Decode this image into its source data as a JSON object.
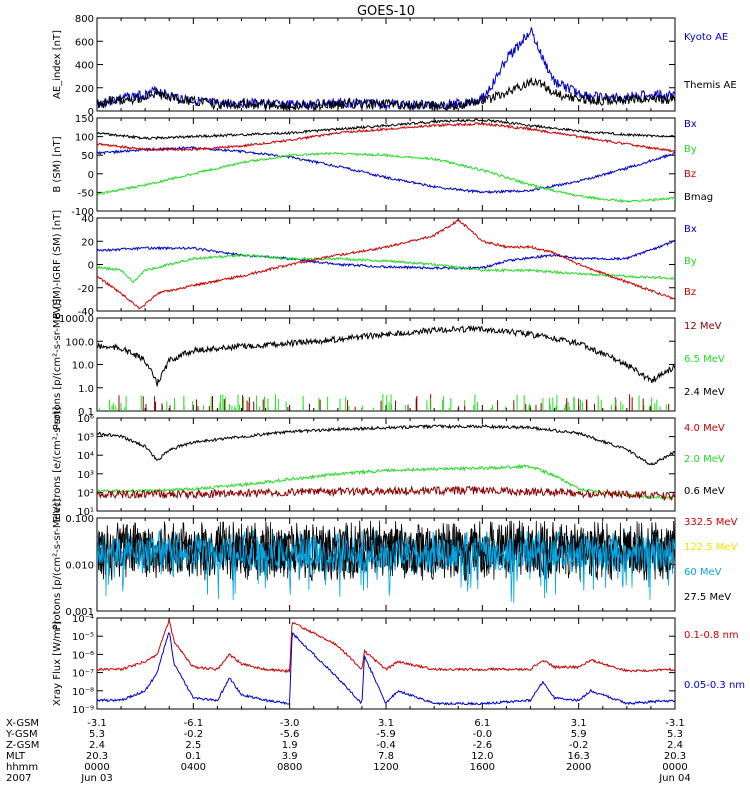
{
  "title": "GOES-10",
  "colors": {
    "blue": "#0000c8",
    "black": "#000000",
    "green": "#22dd22",
    "red": "#cc0000",
    "darkred": "#8b0000",
    "yellow": "#f2e400",
    "cyan": "#00a8e8"
  },
  "xaxis": {
    "tick_labels": [
      "0000",
      "0400",
      "0800",
      "1200",
      "1600",
      "2000",
      "0000"
    ],
    "row_labels": [
      "X-GSM",
      "Y-GSM",
      "Z-GSM",
      "MLT",
      "hhmm",
      "2007"
    ],
    "rows": {
      "xgsm": [
        "-3.1",
        "-6.1",
        "-3.0",
        "3.1",
        "6.1",
        "3.1",
        "-3.1"
      ],
      "ygsm": [
        "5.3",
        "-0.2",
        "-5.6",
        "-5.9",
        "-0.0",
        "5.9",
        "5.3"
      ],
      "zgsm": [
        "2.4",
        "2.5",
        "1.9",
        "-0.4",
        "-2.6",
        "-0.2",
        "2.4"
      ],
      "mlt": [
        "20.3",
        "0.1",
        "3.9",
        "7.8",
        "12.0",
        "16.3",
        "20.3"
      ],
      "hhmm": [
        "0000",
        "0400",
        "0800",
        "1200",
        "1600",
        "2000",
        "0000"
      ]
    },
    "date_start": "Jun 03",
    "date_end": "Jun 04"
  },
  "chart_data": [
    {
      "type": "line",
      "ylabel": "AE_index [nT]",
      "ylim": [
        0,
        800
      ],
      "yticks": [
        "0",
        "200",
        "400",
        "600",
        "800"
      ],
      "series": [
        {
          "name": "Kyoto AE",
          "color": "blue",
          "x": [
            0,
            1,
            2,
            2.5,
            3,
            4,
            5,
            6,
            7,
            8,
            9,
            10,
            11,
            12,
            13,
            14,
            15,
            16,
            16.5,
            17,
            17.5,
            18,
            18.5,
            19,
            20,
            21,
            22,
            23,
            24
          ],
          "y": [
            60,
            110,
            140,
            180,
            130,
            90,
            60,
            70,
            60,
            50,
            60,
            70,
            70,
            60,
            50,
            50,
            60,
            110,
            250,
            450,
            560,
            700,
            450,
            250,
            150,
            110,
            120,
            140,
            130
          ]
        },
        {
          "name": "Themis AE",
          "color": "black",
          "x": [
            0,
            1,
            2,
            2.5,
            3,
            4,
            5,
            6,
            7,
            8,
            9,
            10,
            11,
            12,
            13,
            14,
            15,
            16,
            17,
            18,
            18.5,
            19,
            20,
            21,
            22,
            23,
            24
          ],
          "y": [
            60,
            90,
            120,
            150,
            110,
            80,
            55,
            60,
            55,
            45,
            50,
            60,
            60,
            55,
            50,
            45,
            55,
            90,
            150,
            260,
            240,
            150,
            110,
            90,
            100,
            110,
            100
          ]
        }
      ]
    },
    {
      "type": "line",
      "ylabel": "B (SM) [nT]",
      "ylim": [
        -100,
        150
      ],
      "yticks": [
        "-100",
        "-50",
        "0",
        "50",
        "100",
        "150"
      ],
      "series": [
        {
          "name": "Bx",
          "color": "blue",
          "x": [
            0,
            2,
            4,
            6,
            8,
            10,
            12,
            14,
            16,
            18,
            20,
            22,
            24
          ],
          "y": [
            55,
            65,
            70,
            60,
            45,
            20,
            -10,
            -35,
            -50,
            -45,
            -20,
            15,
            55
          ]
        },
        {
          "name": "By",
          "color": "green",
          "x": [
            0,
            2,
            4,
            6,
            8,
            10,
            12,
            14,
            16,
            18,
            20,
            22,
            24
          ],
          "y": [
            -55,
            -30,
            0,
            30,
            50,
            55,
            50,
            40,
            10,
            -30,
            -60,
            -75,
            -65
          ]
        },
        {
          "name": "Bz",
          "color": "red",
          "x": [
            0,
            2,
            4,
            6,
            8,
            10,
            12,
            14,
            16,
            18,
            20,
            22,
            24
          ],
          "y": [
            80,
            65,
            65,
            75,
            90,
            110,
            120,
            130,
            135,
            120,
            100,
            80,
            60
          ]
        },
        {
          "name": "Bmag",
          "color": "black",
          "x": [
            0,
            2,
            4,
            6,
            8,
            10,
            12,
            14,
            16,
            18,
            20,
            22,
            24
          ],
          "y": [
            110,
            95,
            100,
            105,
            110,
            120,
            130,
            140,
            145,
            130,
            115,
            105,
            100
          ]
        }
      ]
    },
    {
      "type": "line",
      "ylabel": "B (SM)-IGRF (SM) [nT]",
      "ylim": [
        -40,
        40
      ],
      "yticks": [
        "-40",
        "-20",
        "0",
        "20",
        "40"
      ],
      "series": [
        {
          "name": "Bx",
          "color": "blue",
          "x": [
            0,
            2,
            4,
            6,
            8,
            10,
            12,
            14,
            16,
            17,
            18,
            19,
            20,
            22,
            24
          ],
          "y": [
            12,
            14,
            14,
            8,
            5,
            0,
            -2,
            -3,
            -3,
            3,
            6,
            8,
            5,
            5,
            20
          ]
        },
        {
          "name": "By",
          "color": "green",
          "x": [
            0,
            1,
            1.5,
            2,
            3,
            4,
            6,
            8,
            10,
            12,
            14,
            16,
            18,
            20,
            22,
            24
          ],
          "y": [
            -2,
            -5,
            -15,
            -5,
            0,
            5,
            8,
            5,
            5,
            3,
            0,
            -5,
            -5,
            -8,
            -10,
            -12
          ]
        },
        {
          "name": "Bz",
          "color": "red",
          "x": [
            0,
            1,
            1.8,
            2.5,
            4,
            6,
            8,
            10,
            12,
            14,
            15,
            15.5,
            16,
            17,
            18,
            19,
            20,
            22,
            24
          ],
          "y": [
            -10,
            -25,
            -38,
            -25,
            -18,
            -10,
            0,
            8,
            15,
            25,
            38,
            30,
            20,
            15,
            15,
            10,
            0,
            -15,
            -30
          ]
        }
      ]
    },
    {
      "type": "line",
      "scale": "log",
      "ylabel": "Protons [p/(cm²-s-sr-MeV)]",
      "ylim": [
        0.1,
        1000
      ],
      "yticks": [
        "0.1",
        "1.0",
        "10.0",
        "100.0",
        "1000.0"
      ],
      "series": [
        {
          "name": "12 MeV",
          "color": "darkred",
          "x": [],
          "y": []
        },
        {
          "name": "6.5 MeV",
          "color": "green",
          "x": [],
          "y": []
        },
        {
          "name": "2.4 MeV",
          "color": "black",
          "x": [
            0,
            1,
            2,
            2.5,
            3,
            4,
            6,
            8,
            10,
            12,
            14,
            16,
            18,
            20,
            22,
            23,
            24
          ],
          "y": [
            60,
            50,
            15,
            1.5,
            15,
            40,
            60,
            80,
            120,
            200,
            300,
            350,
            200,
            80,
            10,
            2,
            8
          ]
        }
      ]
    },
    {
      "type": "line",
      "scale": "log",
      "ylabel": "Electrons [e/(cm²-s-sr)]",
      "ylim": [
        10,
        1000000
      ],
      "yticks": [
        "10¹",
        "10²",
        "10³",
        "10⁴",
        "10⁵",
        "10⁶"
      ],
      "series": [
        {
          "name": "4.0 MeV",
          "color": "red",
          "x": [],
          "y": []
        },
        {
          "name": "2.0 MeV",
          "color": "green",
          "x": [
            0,
            2,
            4,
            6,
            8,
            10,
            12,
            14,
            16,
            18,
            19,
            20,
            22,
            24
          ],
          "y": [
            120,
            120,
            150,
            250,
            500,
            1000,
            1500,
            1800,
            2000,
            2500,
            800,
            150,
            70,
            50
          ]
        },
        {
          "name": "0.6 MeV",
          "color": "black",
          "x": [
            0,
            1,
            2,
            2.5,
            3,
            4,
            6,
            8,
            10,
            12,
            14,
            16,
            18,
            20,
            22,
            23,
            24
          ],
          "y": [
            150000,
            100000,
            30000,
            5000,
            20000,
            50000,
            100000,
            180000,
            250000,
            300000,
            350000,
            350000,
            300000,
            150000,
            20000,
            3000,
            15000
          ]
        },
        {
          "name": "darkred-base",
          "color": "darkred",
          "x": [
            0,
            4,
            8,
            12,
            16,
            20,
            24
          ],
          "y": [
            80,
            80,
            100,
            120,
            130,
            90,
            60
          ]
        }
      ]
    },
    {
      "type": "line",
      "scale": "log",
      "ylabel": "Protons [p/(cm²-s-sr-MeV)]",
      "ylim": [
        0.001,
        0.1
      ],
      "yticks": [
        "0.001",
        "0.010",
        "0.100"
      ],
      "series": [
        {
          "name": "332.5 MeV",
          "color": "red",
          "x": [],
          "y": []
        },
        {
          "name": "122.5 MeV",
          "color": "yellow",
          "x": [],
          "y": []
        },
        {
          "name": "60 MeV",
          "color": "cyan",
          "x": [
            0,
            24
          ],
          "y": [
            0.018,
            0.018
          ]
        },
        {
          "name": "27.5 MeV",
          "color": "black",
          "x": [
            0,
            24
          ],
          "y": [
            0.02,
            0.02
          ]
        }
      ]
    },
    {
      "type": "line",
      "scale": "log",
      "ylabel": "Xray Flux [W/m²]",
      "ylim": [
        1e-09,
        0.0001
      ],
      "yticks": [
        "10⁻⁹",
        "10⁻⁸",
        "10⁻⁷",
        "10⁻⁶",
        "10⁻⁵",
        "10⁻⁴"
      ],
      "series": [
        {
          "name": "0.1-0.8 nm",
          "color": "red",
          "x": [
            0,
            1,
            2,
            2.5,
            3,
            3.2,
            4,
            5,
            5.5,
            6,
            7,
            8,
            8.1,
            10,
            11,
            11.1,
            12,
            12.5,
            14,
            16,
            18,
            18.5,
            19,
            20,
            20.5,
            22,
            24
          ],
          "y": [
            1.5e-07,
            1.5e-07,
            4e-07,
            1e-06,
            8e-05,
            5e-06,
            2e-07,
            1.5e-07,
            1e-06,
            3e-07,
            1.5e-07,
            1.2e-07,
            6e-05,
            3e-06,
            1.5e-07,
            1.5e-06,
            1.5e-07,
            4e-07,
            1.5e-07,
            1.5e-07,
            1.5e-07,
            5e-07,
            2e-07,
            2e-07,
            5e-07,
            1.2e-07,
            1.5e-07
          ]
        },
        {
          "name": "0.05-0.3 nm",
          "color": "blue",
          "x": [
            0,
            1,
            2,
            2.5,
            3,
            3.2,
            4,
            5,
            5.5,
            6,
            7,
            8,
            8.1,
            10,
            11,
            11.1,
            12,
            12.5,
            14,
            16,
            18,
            18.5,
            19,
            20,
            20.5,
            22,
            24
          ],
          "y": [
            3e-09,
            3e-09,
            1e-08,
            1e-07,
            2e-05,
            3e-07,
            4e-09,
            3e-09,
            5e-08,
            6e-09,
            3e-09,
            2e-09,
            1.5e-05,
            5e-08,
            2e-09,
            8e-07,
            2e-09,
            1e-08,
            2e-09,
            2e-09,
            3e-09,
            3e-08,
            4e-09,
            3e-09,
            1e-08,
            2e-09,
            3e-09
          ]
        }
      ]
    }
  ]
}
